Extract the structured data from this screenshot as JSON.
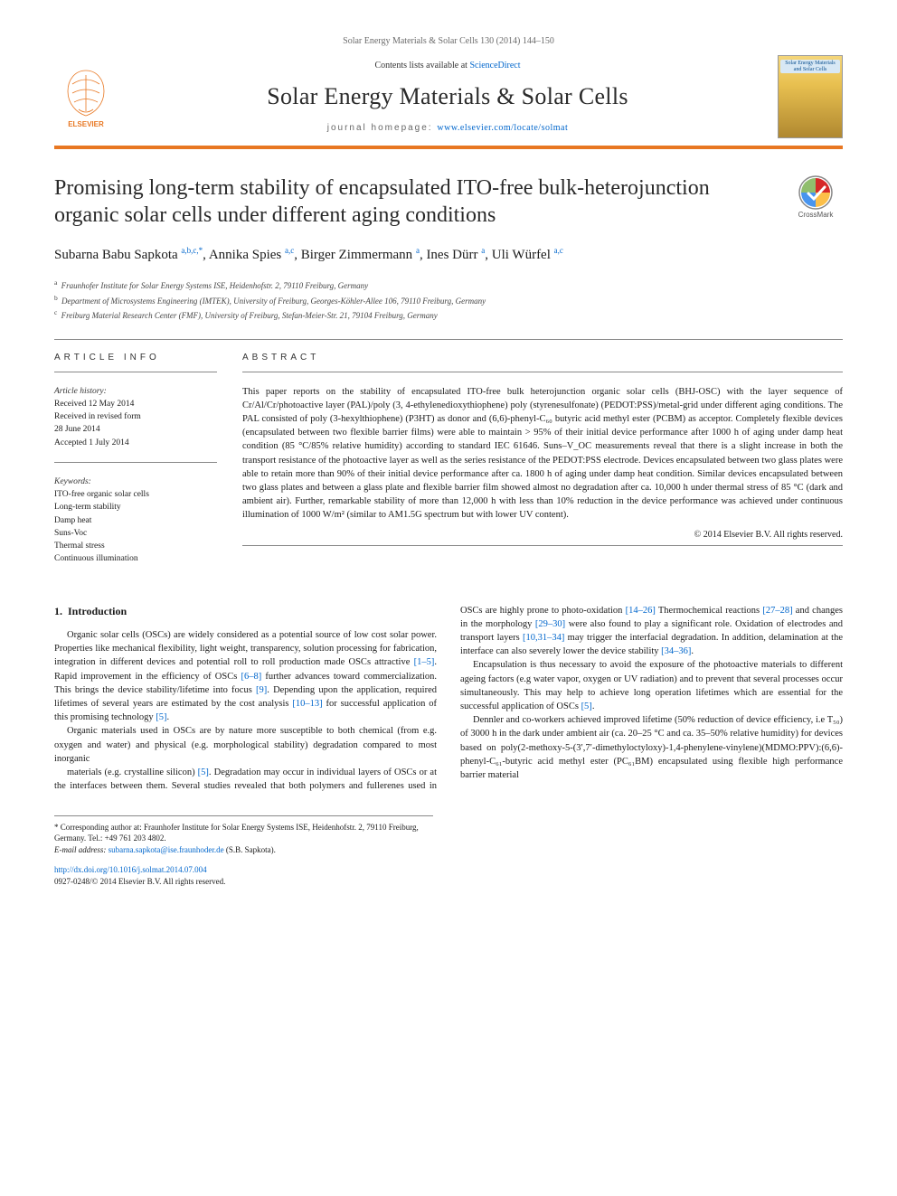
{
  "journal_ref": "Solar Energy Materials & Solar Cells 130 (2014) 144–150",
  "header": {
    "contents_prefix": "Contents lists available at ",
    "contents_link": "ScienceDirect",
    "journal_title": "Solar Energy Materials & Solar Cells",
    "homepage_prefix": "journal homepage: ",
    "homepage_link": "www.elsevier.com/locate/solmat",
    "publisher_text": "ELSEVIER",
    "cover_text": "Solar Energy Materials and Solar Cells"
  },
  "crossmark_label": "CrossMark",
  "title": "Promising long-term stability of encapsulated ITO-free bulk-heterojunction organic solar cells under different aging conditions",
  "authors_html": "Subarna Babu Sapkota <sup>a,b,c,*</sup>, Annika Spies <sup>a,c</sup>, Birger Zimmermann <sup>a</sup>, Ines Dürr <sup>a</sup>, Uli Würfel <sup>a,c</sup>",
  "affiliations": [
    {
      "sup": "a",
      "text": "Fraunhofer Institute for Solar Energy Systems ISE, Heidenhofstr. 2, 79110 Freiburg, Germany"
    },
    {
      "sup": "b",
      "text": "Department of Microsystems Engineering (IMTEK), University of Freiburg, Georges-Köhler-Allee 106, 79110 Freiburg, Germany"
    },
    {
      "sup": "c",
      "text": "Freiburg Material Research Center (FMF), University of Freiburg, Stefan-Meier-Str. 21, 79104 Freiburg, Germany"
    }
  ],
  "article_info": {
    "label": "ARTICLE INFO",
    "history_hdr": "Article history:",
    "history": [
      "Received 12 May 2014",
      "Received in revised form",
      "28 June 2014",
      "Accepted 1 July 2014"
    ],
    "keywords_hdr": "Keywords:",
    "keywords": [
      "ITO-free organic solar cells",
      "Long-term stability",
      "Damp heat",
      "Suns-Voc",
      "Thermal stress",
      "Continuous illumination"
    ]
  },
  "abstract": {
    "label": "ABSTRACT",
    "text": "This paper reports on the stability of encapsulated ITO-free bulk heterojunction organic solar cells (BHJ-OSC) with the layer sequence of Cr/Al/Cr/photoactive layer (PAL)/poly (3, 4-ethylenedioxythiophene) poly (styrenesulfonate) (PEDOT:PSS)/metal-grid under different aging conditions. The PAL consisted of poly (3-hexylthiophene) (P3HT) as donor and (6,6)-phenyl-C₆₀ butyric acid methyl ester (PCBM) as acceptor. Completely flexible devices (encapsulated between two flexible barrier films) were able to maintain > 95% of their initial device performance after 1000 h of aging under damp heat condition (85 °C/85% relative humidity) according to standard IEC 61646. Suns–V_OC measurements reveal that there is a slight increase in both the transport resistance of the photoactive layer as well as the series resistance of the PEDOT:PSS electrode. Devices encapsulated between two glass plates were able to retain more than 90% of their initial device performance after ca. 1800 h of aging under damp heat condition. Similar devices encapsulated between two glass plates and between a glass plate and flexible barrier film showed almost no degradation after ca. 10,000 h under thermal stress of 85 °C (dark and ambient air). Further, remarkable stability of more than 12,000 h with less than 10% reduction in the device performance was achieved under continuous illumination of 1000 W/m² (similar to AM1.5G spectrum but with lower UV content).",
    "copyright": "© 2014 Elsevier B.V. All rights reserved."
  },
  "body": {
    "section_number": "1.",
    "section_title": "Introduction",
    "p1": "Organic solar cells (OSCs) are widely considered as a potential source of low cost solar power. Properties like mechanical flexibility, light weight, transparency, solution processing for fabrication, integration in different devices and potential roll to roll production made OSCs attractive [1–5]. Rapid improvement in the efficiency of OSCs [6–8] further advances toward commercialization. This brings the device stability/lifetime into focus [9]. Depending upon the application, required lifetimes of several years are estimated by the cost analysis [10–13] for successful application of this promising technology [5].",
    "p2": "Organic materials used in OSCs are by nature more susceptible to both chemical (from e.g. oxygen and water) and physical (e.g. morphological stability) degradation compared to most inorganic",
    "p3": "materials (e.g. crystalline silicon) [5]. Degradation may occur in individual layers of OSCs or at the interfaces between them. Several studies revealed that both polymers and fullerenes used in OSCs are highly prone to photo-oxidation [14–26] Thermochemical reactions [27–28] and changes in the morphology [29–30] were also found to play a significant role. Oxidation of electrodes and transport layers [10,31–34] may trigger the interfacial degradation. In addition, delamination at the interface can also severely lower the device stability [34–36].",
    "p4": "Encapsulation is thus necessary to avoid the exposure of the photoactive materials to different ageing factors (e.g water vapor, oxygen or UV radiation) and to prevent that several processes occur simultaneously. This may help to achieve long operation lifetimes which are essential for the successful application of OSCs [5].",
    "p5": "Dennler and co-workers achieved improved lifetime (50% reduction of device efficiency, i.e T₅₀) of 3000 h in the dark under ambient air (ca. 20–25 °C and ca. 35–50% relative humidity) for devices based on poly(2-methoxy-5-(3′,7′-dimethyloctyloxy)-1,4-phenylene-vinylene)(MDMO:PPV):(6,6)-phenyl-C₆₁-butyric acid methyl ester (PC₆₁BM) encapsulated using flexible high performance barrier material",
    "refs": {
      "r1": "[1–5]",
      "r2": "[6–8]",
      "r3": "[9]",
      "r4": "[10–13]",
      "r5": "[5]",
      "r6": "[5]",
      "r7": "[14–26]",
      "r8": "[27–28]",
      "r9": "[29–30]",
      "r10": "[10,31–34]",
      "r11": "[34–36]",
      "r12": "[5]"
    }
  },
  "footnote": {
    "corr": "* Corresponding author at: Fraunhofer Institute for Solar Energy Systems ISE, Heidenhofstr. 2, 79110 Freiburg, Germany. Tel.: +49 761 203 4802.",
    "email_label": "E-mail address: ",
    "email": "subarna.sapkota@ise.fraunhoder.de",
    "email_suffix": " (S.B. Sapkota)."
  },
  "doi": {
    "link": "http://dx.doi.org/10.1016/j.solmat.2014.07.004",
    "issn": "0927-0248/© 2014 Elsevier B.V. All rights reserved."
  },
  "colors": {
    "accent": "#e87722",
    "link": "#0066cc",
    "text": "#1a1a1a",
    "muted": "#6b6b6b"
  }
}
